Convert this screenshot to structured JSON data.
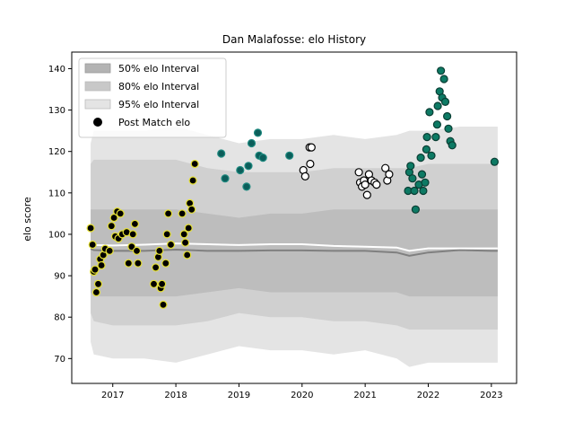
{
  "chart_data": {
    "type": "scatter",
    "title": "Dan Malafosse: elo History",
    "xlabel": "",
    "ylabel": "elo score",
    "xlim": [
      2016.35,
      2023.4
    ],
    "ylim": [
      64,
      144
    ],
    "x_ticks": [
      2017,
      2018,
      2019,
      2020,
      2021,
      2022,
      2023
    ],
    "y_ticks": [
      70,
      80,
      90,
      100,
      110,
      120,
      130,
      140
    ],
    "legend_position": "upper-left",
    "legend": [
      {
        "label": "50% elo Interval",
        "color": "#b3b3b3"
      },
      {
        "label": "80% elo Interval",
        "color": "#c8c8c8"
      },
      {
        "label": "95% elo Interval",
        "color": "#e4e4e4"
      },
      {
        "label": "Post Match elo",
        "color": "#000000"
      }
    ],
    "bands": {
      "x": [
        2016.65,
        2016.7,
        2017.0,
        2017.5,
        2018.0,
        2018.5,
        2019.0,
        2019.5,
        2020.0,
        2020.5,
        2021.0,
        2021.5,
        2021.7,
        2022.0,
        2022.5,
        2023.0,
        2023.1
      ],
      "p95_upper": [
        122,
        125,
        125,
        125,
        126,
        124,
        122,
        123,
        123,
        124,
        123,
        124,
        125,
        125,
        126,
        126,
        126
      ],
      "p95_lower": [
        74,
        71,
        70,
        70,
        69,
        71,
        73,
        72,
        72,
        71,
        72,
        70,
        68,
        69,
        69,
        69,
        69
      ],
      "p80_upper": [
        117,
        118,
        118,
        118,
        118,
        116,
        115,
        115,
        115,
        116,
        116,
        116,
        116,
        117,
        117,
        117,
        117
      ],
      "p80_lower": [
        81,
        79,
        78,
        78,
        78,
        79,
        81,
        80,
        80,
        79,
        79,
        78,
        77,
        77,
        77,
        77,
        77
      ],
      "p50_upper": [
        106,
        106,
        106,
        106,
        106,
        105,
        104,
        105,
        105,
        106,
        106,
        106,
        106,
        106,
        106,
        106,
        106
      ],
      "p50_lower": [
        86,
        85,
        85,
        85,
        85,
        86,
        87,
        86,
        86,
        86,
        86,
        86,
        85,
        85,
        85,
        85,
        85
      ],
      "median": [
        96.5,
        96.2,
        96.0,
        96.0,
        96.3,
        96.0,
        96.0,
        96.1,
        96.1,
        96.0,
        96.0,
        95.6,
        94.8,
        95.6,
        96.2,
        96.0,
        96.0
      ],
      "mean": [
        97.5,
        97.4,
        97.3,
        97.5,
        97.8,
        97.6,
        97.4,
        97.6,
        97.6,
        97.2,
        97.0,
        96.8,
        96.0,
        96.6,
        96.6,
        96.6,
        96.6
      ]
    },
    "series": [
      {
        "name": "",
        "fill": "#000000",
        "stroke": "#e5e035",
        "points": [
          [
            2016.65,
            101.5
          ],
          [
            2016.68,
            97.5
          ],
          [
            2016.7,
            91
          ],
          [
            2016.72,
            91.5
          ],
          [
            2016.74,
            86
          ],
          [
            2016.77,
            88
          ],
          [
            2016.8,
            94
          ],
          [
            2016.82,
            92.5
          ],
          [
            2016.85,
            95
          ],
          [
            2016.88,
            96.5
          ],
          [
            2016.95,
            96
          ],
          [
            2016.98,
            102
          ],
          [
            2017.02,
            104
          ],
          [
            2017.04,
            99.5
          ],
          [
            2017.07,
            105.5
          ],
          [
            2017.09,
            99
          ],
          [
            2017.12,
            105
          ],
          [
            2017.15,
            100
          ],
          [
            2017.22,
            100.5
          ],
          [
            2017.25,
            93
          ],
          [
            2017.3,
            97
          ],
          [
            2017.32,
            100
          ],
          [
            2017.35,
            102.5
          ],
          [
            2017.38,
            96
          ],
          [
            2017.4,
            93
          ],
          [
            2017.65,
            88
          ],
          [
            2017.68,
            92
          ],
          [
            2017.72,
            94.5
          ],
          [
            2017.74,
            96
          ],
          [
            2017.76,
            87
          ],
          [
            2017.78,
            88
          ],
          [
            2017.8,
            83
          ],
          [
            2017.84,
            93
          ],
          [
            2017.86,
            100
          ],
          [
            2017.88,
            105
          ],
          [
            2017.92,
            97.5
          ],
          [
            2018.1,
            105
          ],
          [
            2018.13,
            100
          ],
          [
            2018.15,
            98
          ],
          [
            2018.18,
            95
          ],
          [
            2018.2,
            101.5
          ],
          [
            2018.22,
            107.5
          ],
          [
            2018.25,
            106
          ],
          [
            2018.27,
            113
          ],
          [
            2018.3,
            117
          ]
        ]
      },
      {
        "name": "",
        "fill": "#0b5e5a",
        "stroke": "#1f8a80",
        "points": [
          [
            2018.72,
            119.5
          ],
          [
            2018.78,
            113.5
          ],
          [
            2019.02,
            115.5
          ],
          [
            2019.12,
            111.5
          ],
          [
            2019.15,
            116.5
          ],
          [
            2019.2,
            122
          ],
          [
            2019.3,
            124.5
          ],
          [
            2019.32,
            119
          ],
          [
            2019.38,
            118.5
          ],
          [
            2019.8,
            119
          ]
        ]
      },
      {
        "name": "",
        "fill": "#ffffff",
        "stroke": "#000000",
        "points": [
          [
            2020.02,
            115.5
          ],
          [
            2020.05,
            114
          ],
          [
            2020.12,
            121
          ],
          [
            2020.15,
            121
          ],
          [
            2020.13,
            117
          ],
          [
            2020.9,
            115
          ],
          [
            2020.92,
            112.5
          ],
          [
            2020.95,
            111.5
          ],
          [
            2020.98,
            113
          ],
          [
            2021.0,
            112
          ],
          [
            2021.03,
            109.5
          ],
          [
            2021.06,
            114.5
          ],
          [
            2021.1,
            113
          ],
          [
            2021.15,
            112.5
          ],
          [
            2021.18,
            112
          ],
          [
            2021.32,
            116
          ],
          [
            2021.35,
            113
          ],
          [
            2021.38,
            114.5
          ]
        ]
      },
      {
        "name": "",
        "fill": "#0d7a64",
        "stroke": "#0a3d33",
        "points": [
          [
            2021.68,
            110.5
          ],
          [
            2021.7,
            115
          ],
          [
            2021.72,
            116.5
          ],
          [
            2021.75,
            113.5
          ],
          [
            2021.78,
            110.5
          ],
          [
            2021.8,
            106
          ],
          [
            2021.85,
            112
          ],
          [
            2021.88,
            118.5
          ],
          [
            2021.9,
            114.5
          ],
          [
            2021.92,
            110.5
          ],
          [
            2021.95,
            112.5
          ],
          [
            2021.97,
            120.5
          ],
          [
            2021.98,
            123.5
          ],
          [
            2022.02,
            129.5
          ],
          [
            2022.05,
            119
          ],
          [
            2022.12,
            123.5
          ],
          [
            2022.14,
            126.5
          ],
          [
            2022.15,
            131
          ],
          [
            2022.18,
            134.5
          ],
          [
            2022.2,
            139.5
          ],
          [
            2022.22,
            133
          ],
          [
            2022.25,
            137.5
          ],
          [
            2022.27,
            132
          ],
          [
            2022.3,
            128.5
          ],
          [
            2022.32,
            125.5
          ],
          [
            2022.35,
            122.5
          ],
          [
            2022.38,
            121.5
          ],
          [
            2023.05,
            117.5
          ]
        ]
      }
    ]
  }
}
